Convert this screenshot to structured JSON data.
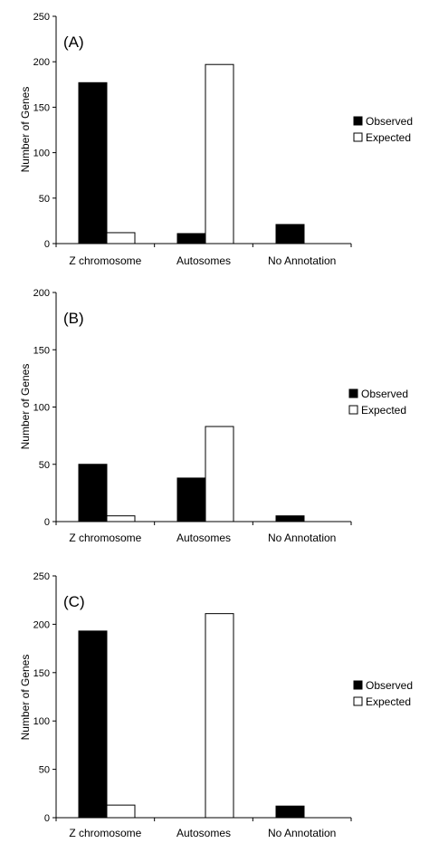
{
  "chart_data": [
    {
      "type": "bar",
      "panel_label": "(A)",
      "categories": [
        "Z chromosome",
        "Autosomes",
        "No Annotation"
      ],
      "series": [
        {
          "name": "Observed",
          "values": [
            177,
            11,
            21
          ]
        },
        {
          "name": "Expected",
          "values": [
            12,
            197,
            null
          ]
        }
      ],
      "ylabel": "Number of Genes",
      "ylim": [
        0,
        250
      ],
      "yticks": [
        0,
        50,
        100,
        150,
        200,
        250
      ],
      "legend": "right",
      "grid": false,
      "colors": {
        "Observed": "#000000",
        "Expected": "#ffffff"
      }
    },
    {
      "type": "bar",
      "panel_label": "(B)",
      "categories": [
        "Z chromosome",
        "Autosomes",
        "No Annotation"
      ],
      "series": [
        {
          "name": "Observed",
          "values": [
            50,
            38,
            5
          ]
        },
        {
          "name": "Expected",
          "values": [
            5,
            83,
            null
          ]
        }
      ],
      "ylabel": "Number of Genes",
      "ylim": [
        0,
        200
      ],
      "yticks": [
        0,
        50,
        100,
        150,
        200
      ],
      "legend": "right",
      "grid": false,
      "colors": {
        "Observed": "#000000",
        "Expected": "#ffffff"
      }
    },
    {
      "type": "bar",
      "panel_label": "(C)",
      "categories": [
        "Z chromosome",
        "Autosomes",
        "No Annotation"
      ],
      "series": [
        {
          "name": "Observed",
          "values": [
            193,
            null,
            12
          ]
        },
        {
          "name": "Expected",
          "values": [
            13,
            211,
            null
          ]
        }
      ],
      "ylabel": "Number of Genes",
      "ylim": [
        0,
        250
      ],
      "yticks": [
        0,
        50,
        100,
        150,
        200,
        250
      ],
      "legend": "right",
      "grid": false,
      "colors": {
        "Observed": "#000000",
        "Expected": "#ffffff"
      }
    }
  ]
}
